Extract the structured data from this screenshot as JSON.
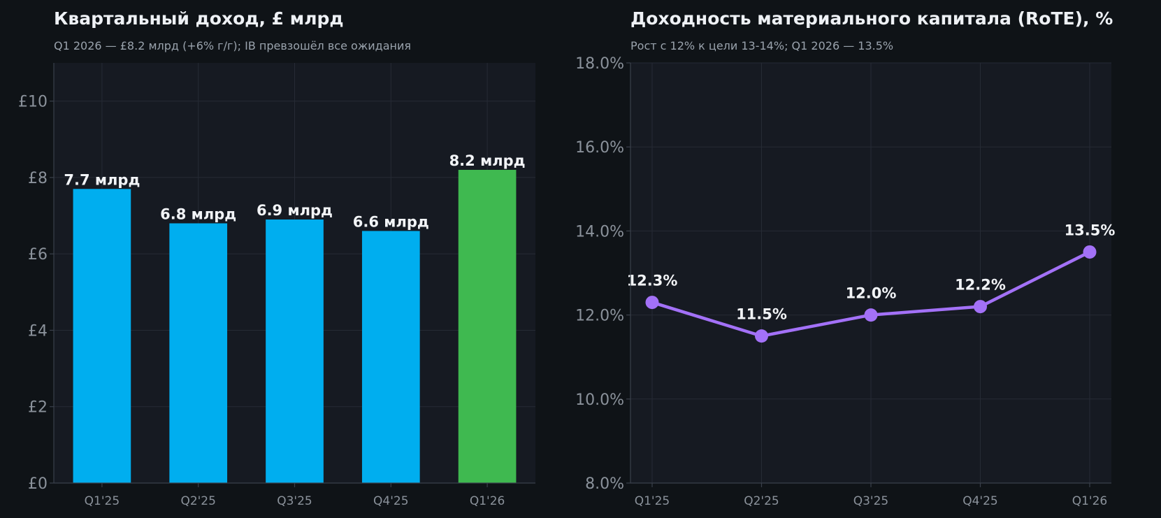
{
  "chart_data": [
    {
      "type": "bar",
      "title": "Квартальный доход, £ млрд",
      "subtitle": "Q1 2026 — £8.2 млрд (+6% г/г); IB превзошёл все ожидания",
      "categories": [
        "Q1'25",
        "Q2'25",
        "Q3'25",
        "Q4'25",
        "Q1'26"
      ],
      "values": [
        7.7,
        6.8,
        6.9,
        6.6,
        8.2
      ],
      "data_labels": [
        "7.7 млрд",
        "6.8 млрд",
        "6.9 млрд",
        "6.6 млрд",
        "8.2 млрд"
      ],
      "bar_colors": [
        "#00aeef",
        "#00aeef",
        "#00aeef",
        "#00aeef",
        "#3fb950"
      ],
      "ylim": [
        0,
        11
      ],
      "yticks": [
        0,
        2,
        4,
        6,
        8,
        10
      ],
      "ytick_labels": [
        "£0",
        "£2",
        "£4",
        "£6",
        "£8",
        "£10"
      ],
      "grid": true
    },
    {
      "type": "line",
      "title": "Доходность материального капитала (RoTE), %",
      "subtitle": "Рост с 12% к цели 13-14%; Q1 2026 — 13.5%",
      "categories": [
        "Q1'25",
        "Q2'25",
        "Q3'25",
        "Q4'25",
        "Q1'26"
      ],
      "values": [
        12.3,
        11.5,
        12.0,
        12.2,
        13.5
      ],
      "data_labels": [
        "12.3%",
        "11.5%",
        "12.0%",
        "12.2%",
        "13.5%"
      ],
      "line_color": "#a371f7",
      "ylim": [
        8,
        18
      ],
      "yticks": [
        8,
        10,
        12,
        14,
        16,
        18
      ],
      "ytick_labels": [
        "8.0%",
        "10.0%",
        "12.0%",
        "14.0%",
        "16.0%",
        "18.0%"
      ],
      "grid": true
    }
  ],
  "colors": {
    "background": "#0f1317",
    "plot_background": "#161a22",
    "grid": "#262b35"
  }
}
